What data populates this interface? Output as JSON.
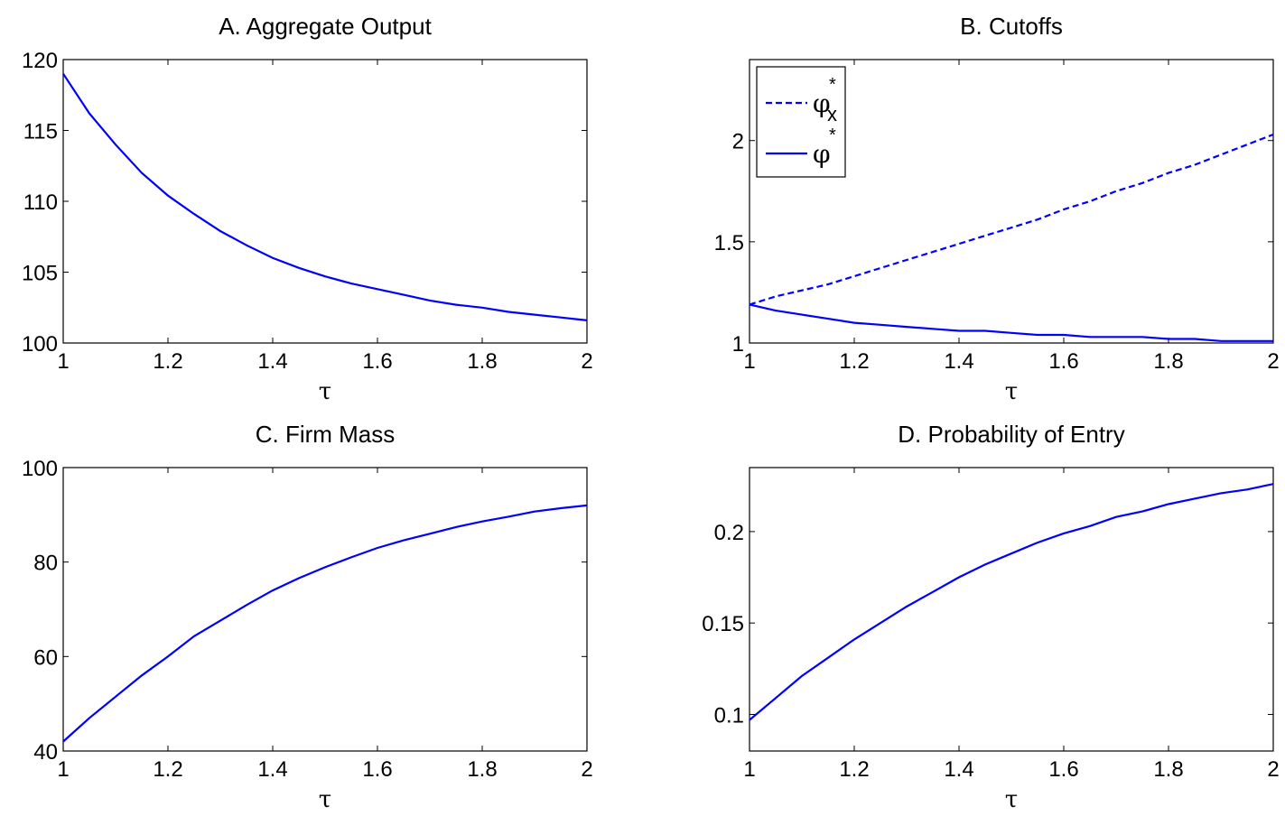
{
  "chart_data": [
    {
      "type": "line",
      "title": "A. Aggregate Output",
      "xlabel": "τ",
      "ylabel": "",
      "xlim": [
        1,
        2
      ],
      "ylim": [
        100,
        120
      ],
      "xticks": [
        1,
        1.2,
        1.4,
        1.6,
        1.8,
        2
      ],
      "xtick_labels": [
        "1",
        "1.2",
        "1.4",
        "1.6",
        "1.8",
        "2"
      ],
      "yticks": [
        100,
        105,
        110,
        115,
        120
      ],
      "ytick_labels": [
        "100",
        "105",
        "110",
        "115",
        "120"
      ],
      "grid": false,
      "series": [
        {
          "color": "#0000ff",
          "style": "solid",
          "x": [
            1,
            1.05,
            1.1,
            1.15,
            1.2,
            1.25,
            1.3,
            1.35,
            1.4,
            1.45,
            1.5,
            1.55,
            1.6,
            1.65,
            1.7,
            1.75,
            1.8,
            1.85,
            1.9,
            1.95,
            2
          ],
          "y": [
            119.0,
            116.2,
            114.0,
            112.0,
            110.4,
            109.1,
            107.9,
            106.9,
            106.0,
            105.3,
            104.7,
            104.2,
            103.8,
            103.4,
            103.0,
            102.7,
            102.5,
            102.2,
            102.0,
            101.8,
            101.6
          ]
        }
      ]
    },
    {
      "type": "line",
      "title": "B. Cutoffs",
      "xlabel": "τ",
      "ylabel": "",
      "xlim": [
        1,
        2
      ],
      "ylim": [
        1,
        2.4
      ],
      "xticks": [
        1,
        1.2,
        1.4,
        1.6,
        1.8,
        2
      ],
      "xtick_labels": [
        "1",
        "1.2",
        "1.4",
        "1.6",
        "1.8",
        "2"
      ],
      "yticks": [
        1,
        1.5,
        2
      ],
      "ytick_labels": [
        "1",
        "1.5",
        "2"
      ],
      "grid": false,
      "legend": {
        "placement": "top-left",
        "entries": [
          {
            "symbol": "φ",
            "superscript": "*",
            "subscript": "x",
            "style": "dashed"
          },
          {
            "symbol": "φ",
            "superscript": "*",
            "subscript": "",
            "style": "solid"
          }
        ]
      },
      "series": [
        {
          "color": "#0000ff",
          "style": "dashed",
          "x": [
            1,
            1.05,
            1.1,
            1.15,
            1.2,
            1.25,
            1.3,
            1.35,
            1.4,
            1.45,
            1.5,
            1.55,
            1.6,
            1.65,
            1.7,
            1.75,
            1.8,
            1.85,
            1.9,
            1.95,
            2
          ],
          "y": [
            1.19,
            1.23,
            1.26,
            1.29,
            1.33,
            1.37,
            1.41,
            1.45,
            1.49,
            1.53,
            1.57,
            1.61,
            1.66,
            1.7,
            1.75,
            1.79,
            1.84,
            1.88,
            1.93,
            1.98,
            2.03
          ]
        },
        {
          "color": "#0000ff",
          "style": "solid",
          "x": [
            1,
            1.05,
            1.1,
            1.15,
            1.2,
            1.25,
            1.3,
            1.35,
            1.4,
            1.45,
            1.5,
            1.55,
            1.6,
            1.65,
            1.7,
            1.75,
            1.8,
            1.85,
            1.9,
            1.95,
            2
          ],
          "y": [
            1.19,
            1.16,
            1.14,
            1.12,
            1.1,
            1.09,
            1.08,
            1.07,
            1.06,
            1.06,
            1.05,
            1.04,
            1.04,
            1.03,
            1.03,
            1.03,
            1.02,
            1.02,
            1.01,
            1.01,
            1.01
          ]
        }
      ]
    },
    {
      "type": "line",
      "title": "C. Firm Mass",
      "xlabel": "τ",
      "ylabel": "",
      "xlim": [
        1,
        2
      ],
      "ylim": [
        40,
        100
      ],
      "xticks": [
        1,
        1.2,
        1.4,
        1.6,
        1.8,
        2
      ],
      "xtick_labels": [
        "1",
        "1.2",
        "1.4",
        "1.6",
        "1.8",
        "2"
      ],
      "yticks": [
        40,
        60,
        80,
        100
      ],
      "ytick_labels": [
        "40",
        "60",
        "80",
        "100"
      ],
      "grid": false,
      "series": [
        {
          "color": "#0000ff",
          "style": "solid",
          "x": [
            1,
            1.05,
            1.1,
            1.15,
            1.2,
            1.25,
            1.3,
            1.35,
            1.4,
            1.45,
            1.5,
            1.55,
            1.6,
            1.65,
            1.7,
            1.75,
            1.8,
            1.85,
            1.9,
            1.95,
            2
          ],
          "y": [
            42.0,
            47.0,
            51.5,
            56.0,
            60.0,
            64.3,
            67.6,
            70.9,
            74.0,
            76.6,
            78.9,
            81.0,
            83.0,
            84.6,
            86.0,
            87.4,
            88.6,
            89.6,
            90.7,
            91.4,
            92.0
          ]
        }
      ]
    },
    {
      "type": "line",
      "title": "D. Probability of Entry",
      "xlabel": "τ",
      "ylabel": "",
      "xlim": [
        1,
        2
      ],
      "ylim": [
        0.08,
        0.235
      ],
      "xticks": [
        1,
        1.2,
        1.4,
        1.6,
        1.8,
        2
      ],
      "xtick_labels": [
        "1",
        "1.2",
        "1.4",
        "1.6",
        "1.8",
        "2"
      ],
      "yticks": [
        0.1,
        0.15,
        0.2
      ],
      "ytick_labels": [
        "0.1",
        "0.15",
        "0.2"
      ],
      "grid": false,
      "series": [
        {
          "color": "#0000ff",
          "style": "solid",
          "x": [
            1,
            1.05,
            1.1,
            1.15,
            1.2,
            1.25,
            1.3,
            1.35,
            1.4,
            1.45,
            1.5,
            1.55,
            1.6,
            1.65,
            1.7,
            1.75,
            1.8,
            1.85,
            1.9,
            1.95,
            2
          ],
          "y": [
            0.097,
            0.109,
            0.121,
            0.131,
            0.141,
            0.15,
            0.159,
            0.167,
            0.175,
            0.182,
            0.188,
            0.194,
            0.199,
            0.203,
            0.208,
            0.211,
            0.215,
            0.218,
            0.221,
            0.223,
            0.226
          ]
        }
      ]
    }
  ]
}
